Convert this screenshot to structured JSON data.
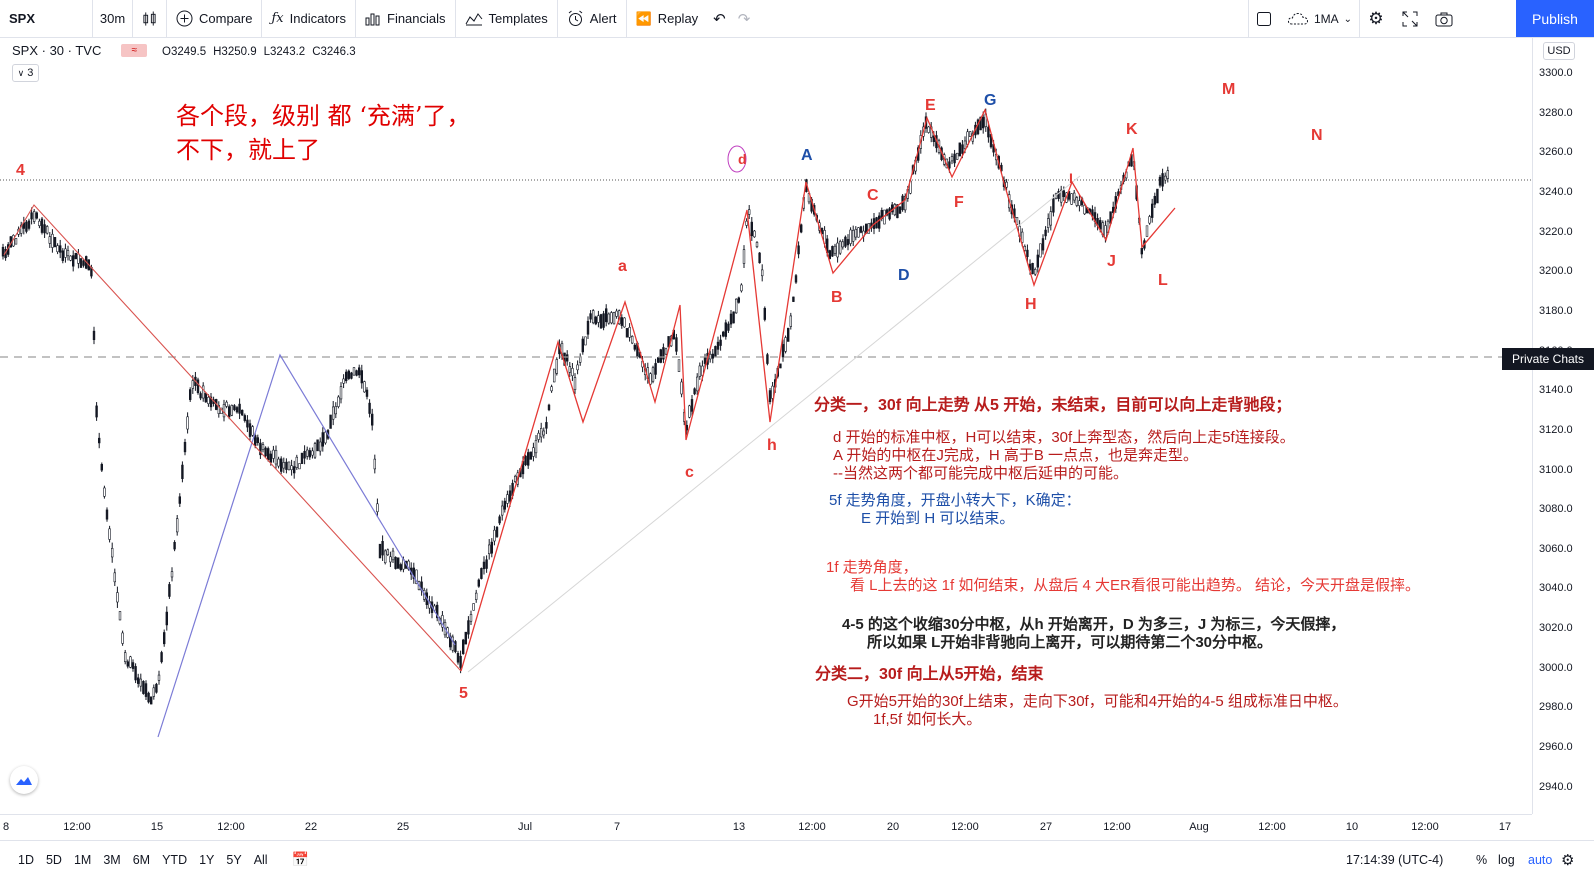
{
  "toolbar": {
    "symbol": "SPX",
    "interval": "30m",
    "compare_label": "Compare",
    "indicators_label": "Indicators",
    "financials_label": "Financials",
    "templates_label": "Templates",
    "alert_label": "Alert",
    "replay_label": "Replay",
    "layout_label": "1MA",
    "publish_label": "Publish"
  },
  "legend": {
    "title": "SPX · 30 · TVC",
    "open": "O3249.5",
    "high": "H3250.9",
    "low": "L3243.2",
    "close": "C3246.3",
    "indicator_count": "3"
  },
  "price_axis": {
    "currency": "USD",
    "ticks": [
      "3300.0",
      "3280.0",
      "3260.0",
      "3240.0",
      "3220.0",
      "3200.0",
      "3180.0",
      "3160.0",
      "3140.0",
      "3120.0",
      "3100.0",
      "3080.0",
      "3060.0",
      "3040.0",
      "3020.0",
      "3000.0",
      "2980.0",
      "2960.0",
      "2940.0"
    ],
    "private_chats_label": "Private Chats"
  },
  "time_axis": {
    "ticks": [
      "8",
      "12:00",
      "15",
      "12:00",
      "22",
      "25",
      "Jul",
      "7",
      "13",
      "12:00",
      "20",
      "12:00",
      "27",
      "12:00",
      "Aug",
      "12:00",
      "10",
      "12:00",
      "17"
    ]
  },
  "bottom_bar": {
    "ranges": [
      "1D",
      "5D",
      "1M",
      "3M",
      "6M",
      "YTD",
      "1Y",
      "5Y",
      "All"
    ],
    "clock": "17:14:39 (UTC-4)",
    "percent_label": "%",
    "log_label": "log",
    "auto_label": "auto"
  },
  "annotations": {
    "big_note": "各个段，级别 都 ‘充满’了，\n不下，就上了",
    "wave_labels": {
      "four": "4",
      "five": "5",
      "a_lower": "a",
      "c_lower": "c",
      "d_lower": "d",
      "h_lower": "h",
      "A": "A",
      "B": "B",
      "C": "C",
      "D": "D",
      "E": "E",
      "F": "F",
      "G": "G",
      "H": "H",
      "I": "I",
      "J": "J",
      "K": "K",
      "L": "L",
      "M": "M",
      "N": "N"
    },
    "notes": {
      "class1_title": "分类一，30f 向上走势 从5 开始，未结束，目前可以向上走背驰段；",
      "class1_l1": "d 开始的标准中枢，H可以结束，30f上奔型态，然后向上走5f连接段。",
      "class1_l2": "A 开始的中枢在J完成，H 高于B 一点点，也是奔走型。",
      "class1_l3": "--当然这两个都可能完成中枢后延申的可能。",
      "f5_l1": "5f 走势角度，开盘小转大下，K确定：",
      "f5_l2": "E 开始到 H 可以结束。",
      "f1_l1": "1f 走势角度，",
      "f1_l2": "看 L上去的这 1f 如何结束，从盘后 4 大ER看很可能出趋势。 结论，今天开盘是假摔。",
      "center_l1": "4-5 的这个收缩30分中枢，从h 开始离开，D 为多三，J 为标三，今天假摔，",
      "center_l2": "所以如果 L开始非背驰向上离开，可以期待第二个30分中枢。",
      "class2_title": "分类二，30f 向上从5开始，结束",
      "class2_l1": "G开始5开始的30f上结束，走向下30f，可能和4开始的4-5 组成标准日中枢。",
      "class2_l2": "1f,5f 如何长大。"
    }
  },
  "colors": {
    "accent": "#2962ff",
    "red_label": "#e53935",
    "blue_label": "#1e4fa8",
    "dark_red_note": "#b71c1c",
    "candle": "#131722"
  }
}
